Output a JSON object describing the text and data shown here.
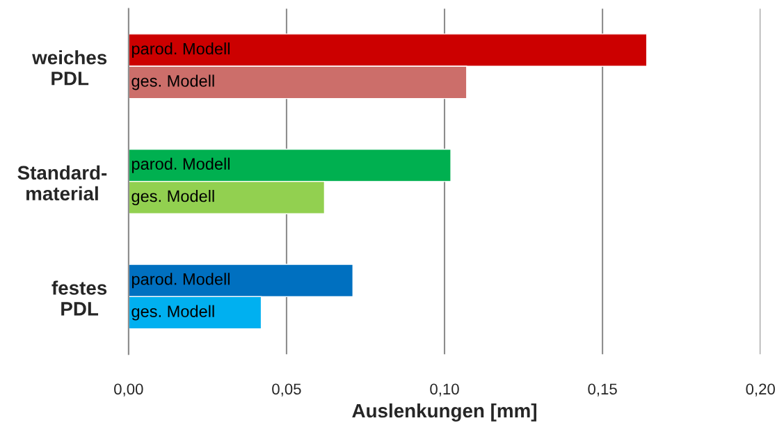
{
  "chart_data": {
    "type": "bar",
    "orientation": "horizontal",
    "categories": [
      "weiches\nPDL",
      "Standard-\nmaterial",
      "festes\nPDL"
    ],
    "series": [
      {
        "name": "parod. Modell",
        "colors": [
          "#cc0000",
          "#00b050",
          "#0070c0"
        ],
        "values": [
          0.164,
          0.102,
          0.071
        ]
      },
      {
        "name": "ges. Modell",
        "colors": [
          "#cc6e6a",
          "#92d050",
          "#00b0f0"
        ],
        "values": [
          0.107,
          0.062,
          0.042
        ]
      }
    ],
    "xlabel": "Auslenkungen [mm]",
    "xlim": [
      0,
      0.2
    ],
    "xticks": [
      {
        "value": 0,
        "label": "0,00"
      },
      {
        "value": 0.05,
        "label": "0,05"
      },
      {
        "value": 0.1,
        "label": "0,10"
      },
      {
        "value": 0.15,
        "label": "0,15"
      },
      {
        "value": 0.2,
        "label": "0,20"
      }
    ],
    "grid": "x",
    "legend": false
  }
}
